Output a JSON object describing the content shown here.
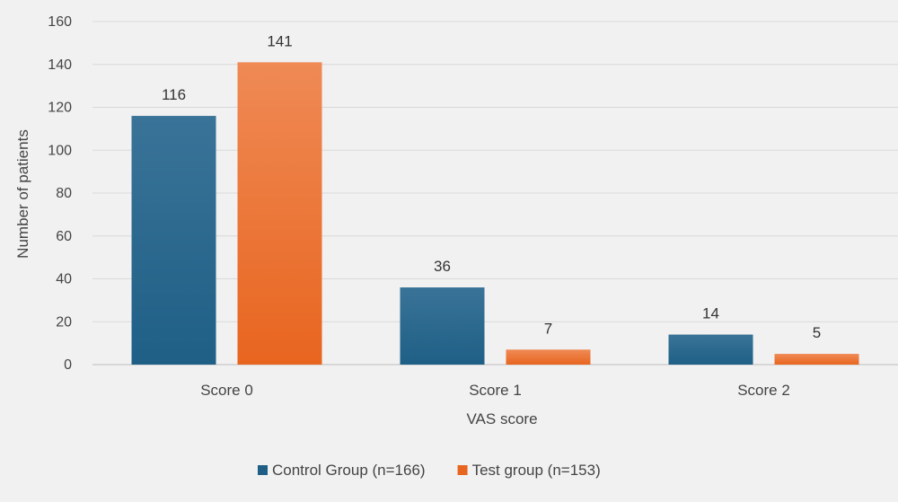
{
  "chart_data": {
    "type": "bar",
    "title": "",
    "xlabel": "VAS score",
    "ylabel": "Number of patients",
    "categories": [
      "Score 0",
      "Score 1",
      "Score 2"
    ],
    "ylim": [
      0,
      160
    ],
    "yticks": [
      0,
      20,
      40,
      60,
      80,
      100,
      120,
      140,
      160
    ],
    "grid": true,
    "legend_position": "bottom",
    "series": [
      {
        "name": "Control Group (n=166)",
        "values": [
          116,
          36,
          14
        ],
        "color": "#1f5f86",
        "color_top": "#3a7398"
      },
      {
        "name": "Test group (n=153)",
        "values": [
          141,
          7,
          5
        ],
        "color": "#e8651f",
        "color_top": "#ef8a55"
      }
    ],
    "data_labels": true
  }
}
